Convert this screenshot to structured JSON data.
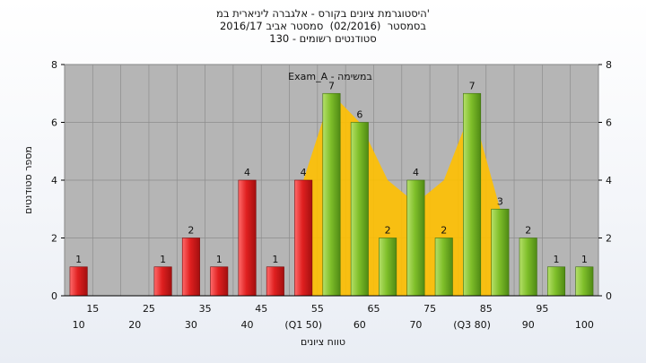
{
  "chart_data": {
    "type": "bar",
    "title_lines": [
      "היסטוגרמת ציונים בקורס - אלגברה ליניארית במ'",
      "בסמסטר  (02/2016)  סמסטר אביב 2016/17",
      "סטודנטים רשומים - 130"
    ],
    "ylabel": "מספר סטודנטים",
    "xlabel": "טווח ציונים",
    "ylim": [
      0,
      8
    ],
    "yticks": [
      0,
      2,
      4,
      6,
      8
    ],
    "x_tick_labels_row1": [
      "15",
      "25",
      "35",
      "45",
      "55",
      "65",
      "75",
      "85",
      "95"
    ],
    "x_tick_labels_row2": [
      "10",
      "20",
      "30",
      "40",
      "(Q1 50)",
      "60",
      "70",
      "(Q3 80)",
      "90",
      "100"
    ],
    "categories": [
      "10",
      "15",
      "20",
      "25",
      "30",
      "35",
      "40",
      "45",
      "50",
      "55",
      "60",
      "65",
      "70",
      "75",
      "80",
      "85",
      "90",
      "95",
      "100"
    ],
    "values": [
      1,
      0,
      0,
      1,
      2,
      1,
      4,
      1,
      4,
      7,
      6,
      2,
      4,
      2,
      7,
      3,
      2,
      1,
      1
    ],
    "data_labels": [
      "1",
      "",
      "",
      "1",
      "2",
      "1",
      "4",
      "1",
      "4",
      "7",
      "6",
      "2",
      "4",
      "2",
      "7",
      "3",
      "2",
      "1",
      "1"
    ],
    "series_colors": {
      "failing": "#e02020",
      "passing": "#7fbf2a",
      "area": "#ffc000"
    },
    "failing_categories": [
      "10",
      "15",
      "20",
      "25",
      "30",
      "35",
      "40",
      "45",
      "50"
    ],
    "area_overlay": {
      "categories": [
        "50",
        "55",
        "60",
        "65",
        "70",
        "75",
        "80",
        "85"
      ],
      "values": [
        4,
        7,
        6,
        4,
        3.2,
        4,
        6.5,
        3
      ]
    },
    "annotation": "Exam_A - במשימה",
    "grid": true,
    "plot_background": "#b5b5b5"
  }
}
